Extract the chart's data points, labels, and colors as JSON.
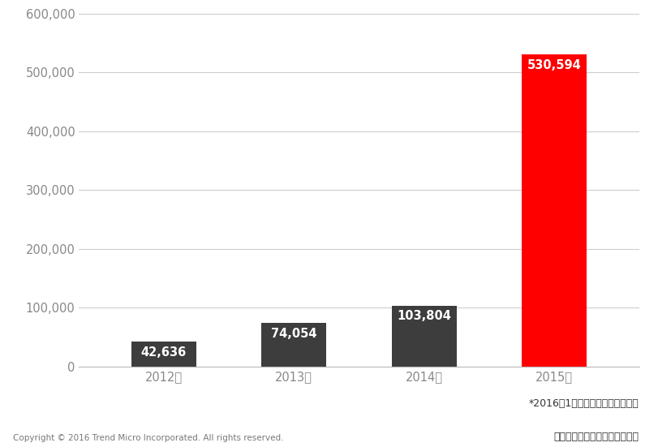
{
  "categories": [
    "2012年",
    "2013年",
    "2014年",
    "2015年"
  ],
  "values": [
    42636,
    74054,
    103804,
    530594
  ],
  "bar_colors": [
    "#3d3d3d",
    "#3d3d3d",
    "#3d3d3d",
    "#ff0000"
  ],
  "label_colors": [
    "#ffffff",
    "#ffffff",
    "#ffffff",
    "#ffffff"
  ],
  "value_labels": [
    "42,636",
    "74,054",
    "103,804",
    "530,594"
  ],
  "ylim": [
    0,
    600000
  ],
  "yticks": [
    0,
    100000,
    200000,
    300000,
    400000,
    500000,
    600000
  ],
  "ytick_labels": [
    "0",
    "100,000",
    "200,000",
    "300,000",
    "400,000",
    "500,000",
    "600,000"
  ],
  "background_color": "#ffffff",
  "grid_color": "#cccccc",
  "bar_width": 0.5,
  "label_inside_fontsize": 10.5,
  "tick_fontsize": 10.5,
  "copyright_text": "Copyright © 2016 Trend Micro Incorporated. All rights reserved.",
  "footnote_line1": "*2016年1月トレンドマイクロ調べ",
  "footnote_line2": "トレンドマイクロによる検出数",
  "copyright_fontsize": 7.5,
  "footnote_fontsize": 9,
  "ytick_color": "#888888"
}
